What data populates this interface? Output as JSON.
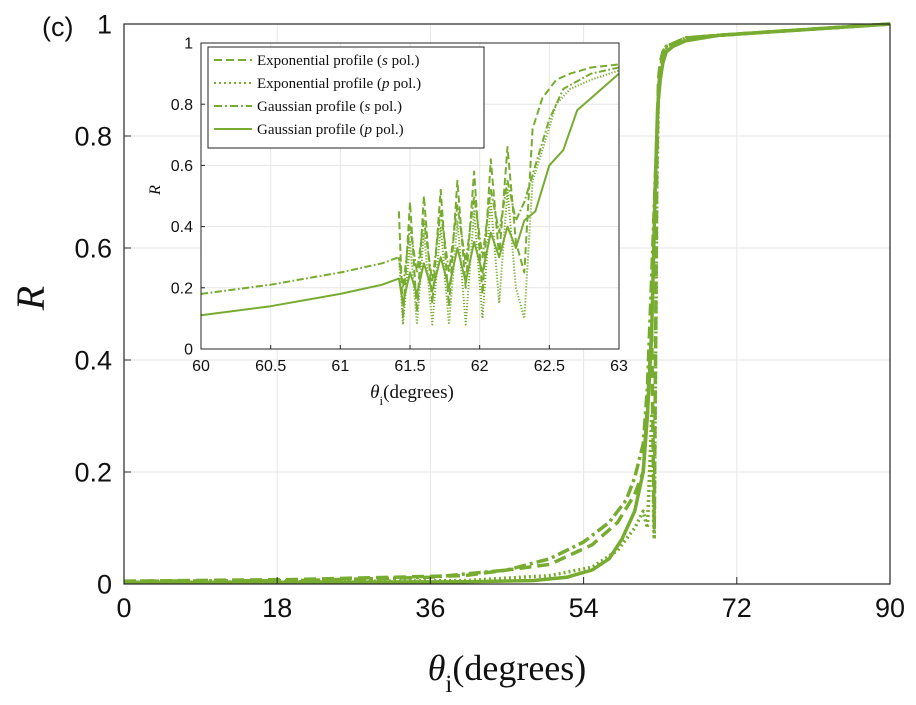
{
  "panel_label": "(c)",
  "colors": {
    "series": "#77ac30",
    "axis": "#262626",
    "grid": "#e6e6e6"
  },
  "chart_data": [
    {
      "id": "main",
      "type": "line",
      "title": "",
      "xlabel_symbol": "θ",
      "xlabel_subscript": "i",
      "xlabel_rest": "(degrees)",
      "ylabel": "R",
      "xlim": [
        0,
        90
      ],
      "ylim": [
        0,
        1
      ],
      "xticks": [
        0,
        18,
        36,
        54,
        72,
        90
      ],
      "yticks": [
        0,
        0.2,
        0.4,
        0.6,
        0.8,
        1
      ],
      "ytick_labels": [
        "0",
        "0.2",
        "0.4",
        "0.6",
        "0.8",
        "1"
      ],
      "grid": true,
      "series": [
        {
          "name": "Exponential profile (s pol.)",
          "dash": "dashed",
          "x": [
            0,
            20,
            40,
            50,
            55,
            58,
            60,
            61,
            61.5,
            62,
            62.3,
            62.5,
            62.6,
            62.8,
            63,
            63.3,
            63.7,
            64.5,
            66,
            70,
            80,
            90
          ],
          "y": [
            0.005,
            0.008,
            0.015,
            0.035,
            0.07,
            0.11,
            0.16,
            0.2,
            0.32,
            0.45,
            0.1,
            0.5,
            0.75,
            0.9,
            0.93,
            0.95,
            0.96,
            0.965,
            0.975,
            0.98,
            0.99,
            1.0
          ]
        },
        {
          "name": "Exponential profile (p pol.)",
          "dash": "dotted",
          "x": [
            0,
            20,
            40,
            50,
            55,
            58,
            60,
            61,
            61.5,
            62,
            62.3,
            62.5,
            62.6,
            62.8,
            63,
            63.3,
            63.7,
            64.5,
            66,
            70,
            80,
            90
          ],
          "y": [
            0.003,
            0.004,
            0.006,
            0.015,
            0.03,
            0.06,
            0.1,
            0.13,
            0.1,
            0.3,
            0.08,
            0.45,
            0.7,
            0.88,
            0.92,
            0.94,
            0.955,
            0.965,
            0.975,
            0.98,
            0.99,
            1.0
          ]
        },
        {
          "name": "Gaussian profile (s pol.)",
          "dash": "dashdot",
          "x": [
            0,
            20,
            36,
            45,
            50,
            54,
            57,
            59,
            60,
            61,
            61.5,
            62,
            62.5,
            62.8,
            63,
            63.3,
            63.7,
            64.5,
            66,
            70,
            80,
            90
          ],
          "y": [
            0.005,
            0.006,
            0.012,
            0.025,
            0.045,
            0.075,
            0.11,
            0.15,
            0.19,
            0.25,
            0.35,
            0.55,
            0.75,
            0.88,
            0.92,
            0.945,
            0.96,
            0.965,
            0.975,
            0.98,
            0.99,
            1.0
          ]
        },
        {
          "name": "Gaussian profile (p pol.)",
          "dash": "solid",
          "x": [
            0,
            20,
            40,
            48,
            52,
            55,
            57,
            58.5,
            60,
            61,
            61.5,
            62,
            62.4,
            62.7,
            63,
            63.3,
            63.7,
            64.5,
            66,
            70,
            80,
            90
          ],
          "y": [
            0.003,
            0.003,
            0.004,
            0.006,
            0.012,
            0.025,
            0.045,
            0.08,
            0.13,
            0.2,
            0.3,
            0.45,
            0.7,
            0.85,
            0.9,
            0.93,
            0.95,
            0.96,
            0.97,
            0.98,
            0.99,
            1.0
          ]
        }
      ]
    },
    {
      "id": "inset",
      "type": "line",
      "title": "",
      "xlabel_symbol": "θ",
      "xlabel_subscript": "i",
      "xlabel_rest": "(degrees)",
      "ylabel": "R",
      "xlim": [
        60,
        63
      ],
      "ylim": [
        0,
        1
      ],
      "xticks": [
        60,
        60.5,
        61,
        61.5,
        62,
        62.5,
        63
      ],
      "yticks": [
        0,
        0.2,
        0.4,
        0.6,
        0.8,
        1
      ],
      "ytick_labels": [
        "0",
        "0.2",
        "0.4",
        "0.6",
        "0.8",
        "1"
      ],
      "grid": true,
      "legend": {
        "placement": "top-left",
        "entries": [
          {
            "prefix": "Exponential profile (",
            "pol": "s",
            "suffix": " pol.)",
            "dash": "dashed"
          },
          {
            "prefix": "Exponential profile (",
            "pol": "p",
            "suffix": " pol.)",
            "dash": "dotted"
          },
          {
            "prefix": "Gaussian profile (",
            "pol": "s",
            "suffix": " pol.)",
            "dash": "dashdot"
          },
          {
            "prefix": "Gaussian profile (",
            "pol": "p",
            "suffix": " pol.)",
            "dash": "solid"
          }
        ]
      },
      "series": [
        {
          "name": "Exponential profile (s pol.)",
          "dash": "dashed",
          "x": [
            61.42,
            61.45,
            61.5,
            61.55,
            61.6,
            61.66,
            61.72,
            61.78,
            61.84,
            61.9,
            61.96,
            62.02,
            62.08,
            62.14,
            62.2,
            62.26,
            62.32,
            62.38,
            62.45,
            62.55,
            62.65,
            62.8,
            63
          ],
          "y": [
            0.45,
            0.1,
            0.48,
            0.12,
            0.5,
            0.15,
            0.52,
            0.14,
            0.55,
            0.2,
            0.58,
            0.18,
            0.62,
            0.3,
            0.66,
            0.35,
            0.25,
            0.72,
            0.82,
            0.88,
            0.9,
            0.92,
            0.93
          ]
        },
        {
          "name": "Exponential profile (p pol.)",
          "dash": "dotted",
          "x": [
            61.42,
            61.45,
            61.5,
            61.55,
            61.6,
            61.66,
            61.72,
            61.78,
            61.84,
            61.9,
            61.96,
            62.02,
            62.08,
            62.14,
            62.2,
            62.26,
            62.32,
            62.38,
            62.45,
            62.55,
            62.65,
            62.8,
            63
          ],
          "y": [
            0.3,
            0.08,
            0.35,
            0.08,
            0.38,
            0.08,
            0.4,
            0.08,
            0.42,
            0.08,
            0.45,
            0.1,
            0.48,
            0.15,
            0.52,
            0.2,
            0.1,
            0.55,
            0.65,
            0.8,
            0.85,
            0.88,
            0.91
          ]
        },
        {
          "name": "Gaussian profile (s pol.)",
          "dash": "dashdot",
          "x": [
            60,
            60.5,
            61,
            61.3,
            61.42,
            61.45,
            61.5,
            61.55,
            61.6,
            61.66,
            61.72,
            61.78,
            61.84,
            61.9,
            61.96,
            62.02,
            62.08,
            62.14,
            62.2,
            62.26,
            62.32,
            62.4,
            62.5,
            62.6,
            62.8,
            63
          ],
          "y": [
            0.18,
            0.21,
            0.25,
            0.28,
            0.3,
            0.2,
            0.4,
            0.25,
            0.42,
            0.22,
            0.45,
            0.25,
            0.47,
            0.28,
            0.5,
            0.3,
            0.52,
            0.38,
            0.55,
            0.42,
            0.48,
            0.6,
            0.75,
            0.85,
            0.9,
            0.92
          ]
        },
        {
          "name": "Gaussian profile (p pol.)",
          "dash": "solid",
          "x": [
            60,
            60.5,
            61,
            61.3,
            61.42,
            61.45,
            61.5,
            61.55,
            61.6,
            61.66,
            61.72,
            61.78,
            61.84,
            61.9,
            61.96,
            62.02,
            62.08,
            62.14,
            62.2,
            62.26,
            62.32,
            62.4,
            62.5,
            62.6,
            62.7,
            62.8,
            63
          ],
          "y": [
            0.11,
            0.14,
            0.18,
            0.21,
            0.23,
            0.15,
            0.25,
            0.18,
            0.28,
            0.19,
            0.3,
            0.2,
            0.33,
            0.22,
            0.35,
            0.25,
            0.38,
            0.3,
            0.4,
            0.33,
            0.42,
            0.45,
            0.6,
            0.65,
            0.78,
            0.82,
            0.9
          ]
        }
      ]
    }
  ]
}
